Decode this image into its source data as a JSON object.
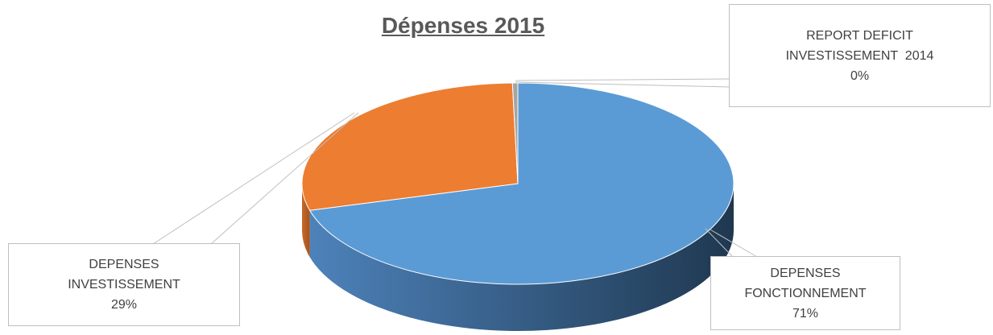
{
  "chart_data": {
    "type": "pie",
    "title": "Dépenses 2015",
    "categories": [
      "DEPENSES FONCTIONNEMENT",
      "DEPENSES INVESTISSEMENT",
      "REPORT DEFICIT INVESTISSEMENT  2014"
    ],
    "values": [
      71,
      29,
      0.4
    ],
    "value_labels": [
      "71%",
      "29%",
      "0%"
    ],
    "colors": [
      "#5b9bd5",
      "#ed7d31",
      "#a5a5a5"
    ]
  }
}
